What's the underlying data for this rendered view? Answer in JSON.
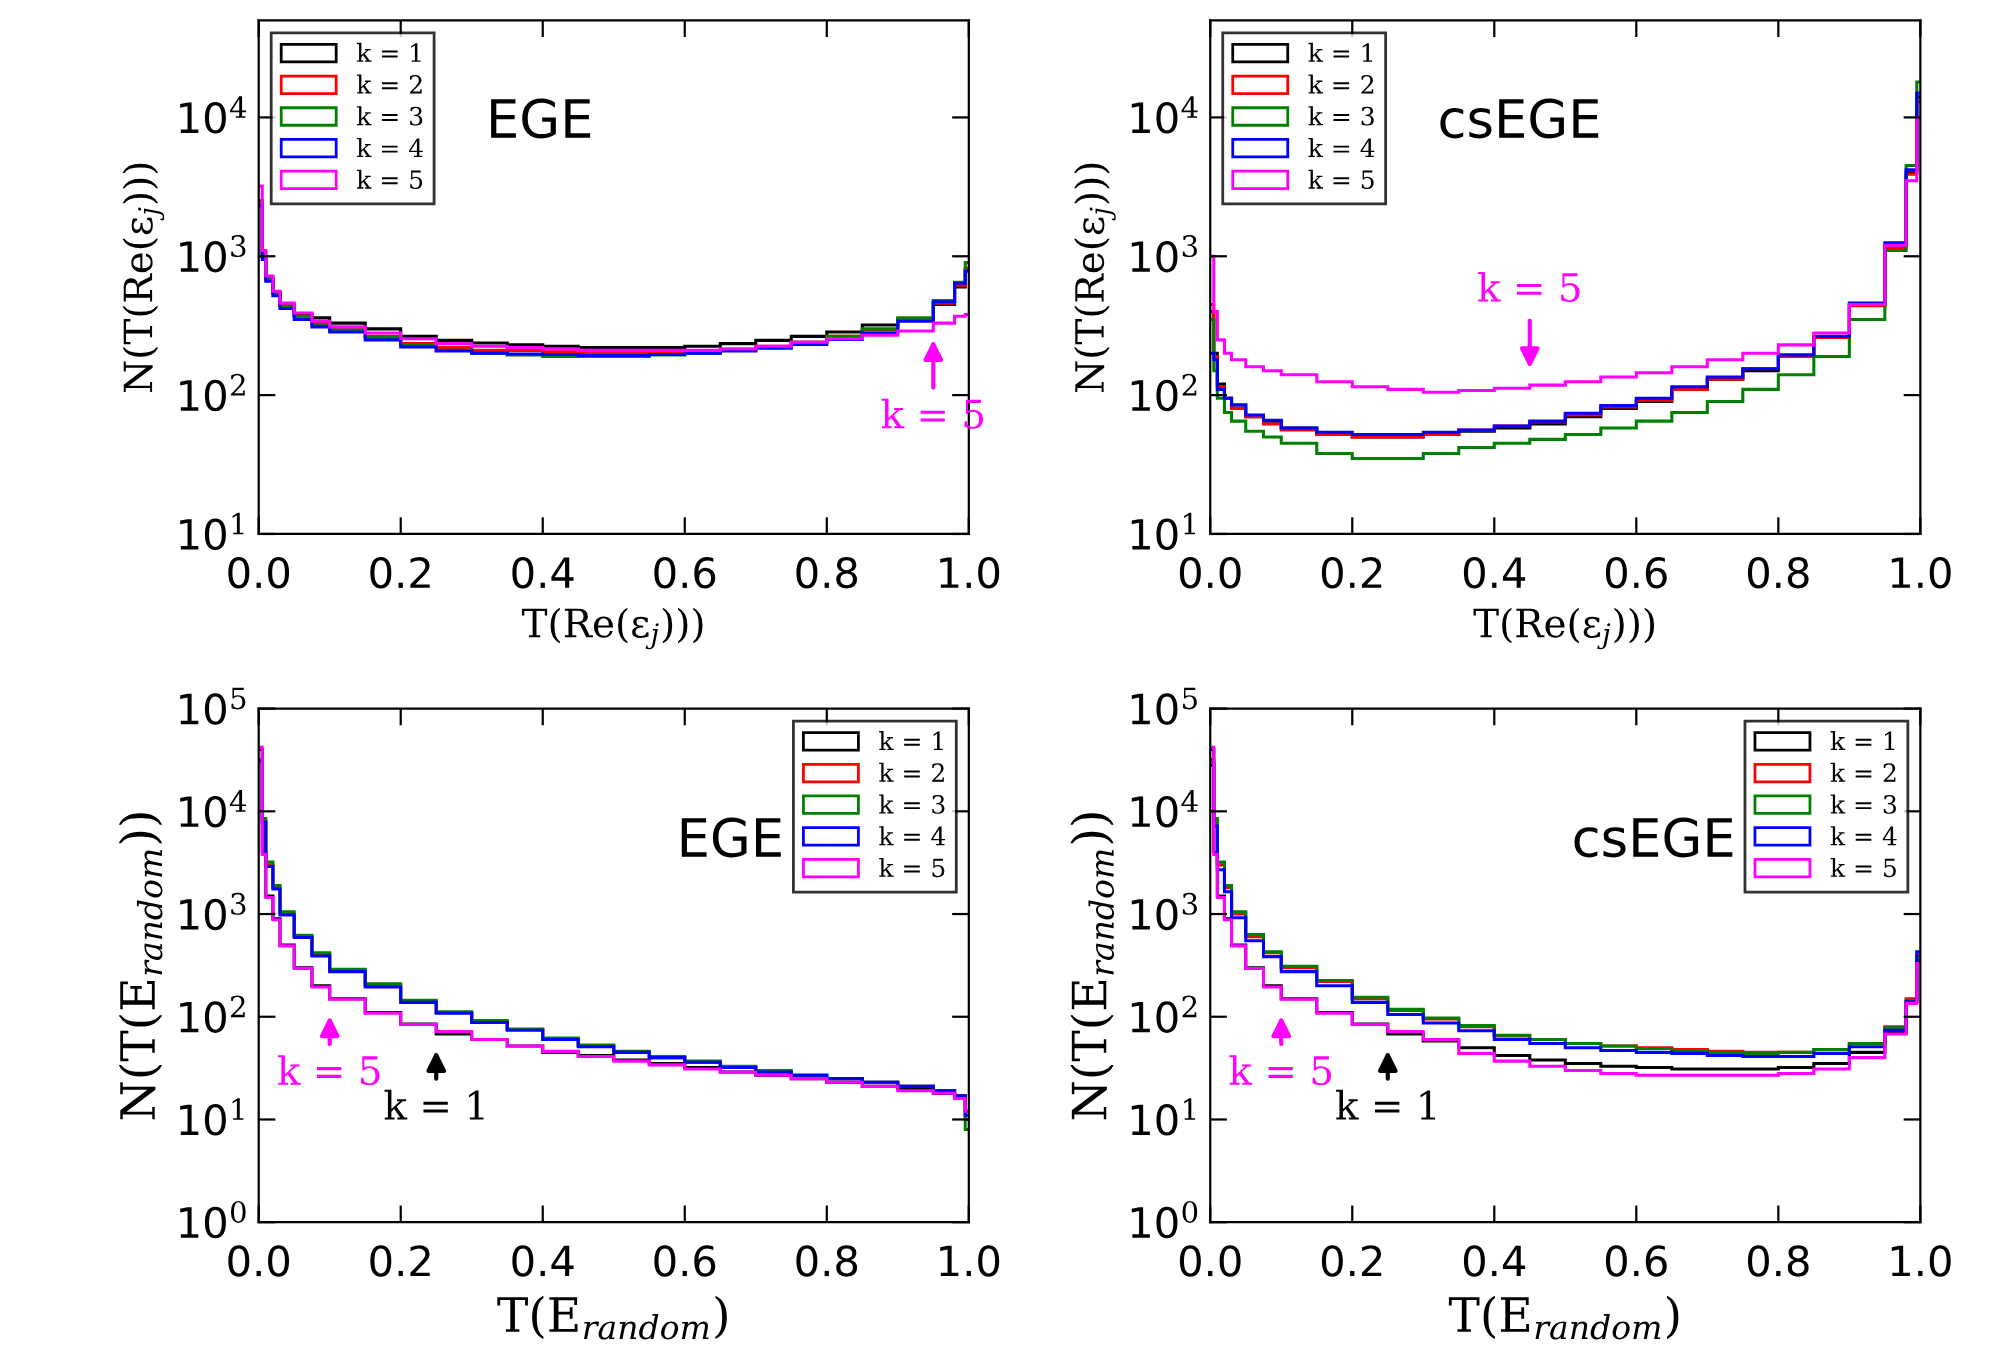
{
  "chart_data": [
    {
      "type": "histogram",
      "xlabel": "T(Re(ε$_{j}$)))",
      "ylabel": "N(T(Re(ε$_{j}$)))",
      "log": "y",
      "legend": "top left",
      "xlim": [
        0,
        1
      ],
      "ylim": [
        10,
        50000
      ],
      "xticks": [
        {
          "value": 0,
          "label": "0.0"
        },
        {
          "value": 0.2,
          "label": "0.2"
        },
        {
          "value": 0.4,
          "label": "0.4"
        },
        {
          "value": 0.6,
          "label": "0.6"
        },
        {
          "value": 0.8,
          "label": "0.8"
        },
        {
          "value": 1,
          "label": "1.0"
        }
      ],
      "yticks": [
        {
          "value": 10,
          "label": "10$^{1}$"
        },
        {
          "value": 100,
          "label": "10$^{2}$"
        },
        {
          "value": 1000,
          "label": "10$^{3}$"
        },
        {
          "value": 10000,
          "label": "10$^{4}$"
        }
      ],
      "bins": [
        0,
        0.005,
        0.01,
        0.02,
        0.03,
        0.05,
        0.075,
        0.1,
        0.15,
        0.2,
        0.25,
        0.3,
        0.35,
        0.4,
        0.45,
        0.5,
        0.55,
        0.6,
        0.65,
        0.7,
        0.75,
        0.8,
        0.85,
        0.9,
        0.95,
        0.98,
        0.995,
        1
      ],
      "series": [
        {
          "name": "k = 1",
          "color": "#000000",
          "values": [
            2500,
            1000,
            700,
            550,
            450,
            380,
            360,
            330,
            300,
            265,
            248,
            237,
            230,
            225,
            220,
            220,
            220,
            225,
            235,
            248,
            265,
            285,
            320,
            350,
            450,
            600,
            800
          ]
        },
        {
          "name": "k = 2",
          "color": "#ff0000",
          "values": [
            2400,
            1050,
            680,
            540,
            440,
            370,
            330,
            300,
            265,
            235,
            220,
            210,
            210,
            205,
            200,
            200,
            205,
            205,
            215,
            225,
            240,
            265,
            295,
            355,
            460,
            620,
            820
          ]
        },
        {
          "name": "k = 3",
          "color": "#008000",
          "values": [
            2500,
            1000,
            690,
            540,
            440,
            370,
            320,
            295,
            260,
            230,
            210,
            200,
            195,
            190,
            190,
            190,
            195,
            200,
            210,
            220,
            240,
            265,
            300,
            360,
            480,
            650,
            900
          ]
        },
        {
          "name": "k = 4",
          "color": "#0000ff",
          "values": [
            2300,
            950,
            660,
            520,
            420,
            350,
            310,
            285,
            250,
            222,
            208,
            200,
            198,
            196,
            193,
            193,
            196,
            200,
            208,
            218,
            232,
            252,
            280,
            340,
            470,
            640,
            780
          ]
        },
        {
          "name": "k = 5",
          "color": "#ff00ff",
          "values": [
            3200,
            1100,
            720,
            560,
            460,
            390,
            340,
            310,
            280,
            255,
            235,
            225,
            220,
            215,
            210,
            210,
            210,
            210,
            215,
            225,
            240,
            255,
            270,
            290,
            330,
            370,
            380
          ]
        }
      ],
      "annotations": [
        "EGE",
        {
          "text": "k = 5",
          "x": 0.95,
          "y": 330
        }
      ]
    },
    {
      "type": "histogram",
      "xlabel": "T(Re(ε$_{j}$)))",
      "ylabel": "N(T(Re(ε$_{j}$)))",
      "log": "y",
      "legend": "top left",
      "xlim": [
        0,
        1
      ],
      "ylim": [
        10,
        50000
      ],
      "xticks": [
        {
          "value": 0,
          "label": "0.0"
        },
        {
          "value": 0.2,
          "label": "0.2"
        },
        {
          "value": 0.4,
          "label": "0.4"
        },
        {
          "value": 0.6,
          "label": "0.6"
        },
        {
          "value": 0.8,
          "label": "0.8"
        },
        {
          "value": 1,
          "label": "1.0"
        }
      ],
      "yticks": [
        {
          "value": 10,
          "label": "10$^{1}$"
        },
        {
          "value": 100,
          "label": "10$^{2}$"
        },
        {
          "value": 1000,
          "label": "10$^{3}$"
        },
        {
          "value": 10000,
          "label": "10$^{4}$"
        }
      ],
      "bins": [
        0,
        0.005,
        0.01,
        0.02,
        0.03,
        0.05,
        0.075,
        0.1,
        0.15,
        0.2,
        0.25,
        0.3,
        0.35,
        0.4,
        0.45,
        0.5,
        0.55,
        0.6,
        0.65,
        0.7,
        0.75,
        0.8,
        0.85,
        0.9,
        0.95,
        0.98,
        0.995,
        1
      ],
      "series": [
        {
          "name": "k = 1",
          "color": "#000000",
          "values": [
            400,
            200,
            120,
            95,
            85,
            70,
            65,
            58,
            52,
            50,
            50,
            52,
            55,
            58,
            62,
            70,
            80,
            90,
            110,
            130,
            150,
            190,
            260,
            450,
            1200,
            4000,
            14000
          ]
        },
        {
          "name": "k = 2",
          "color": "#ff0000",
          "values": [
            450,
            190,
            115,
            95,
            80,
            70,
            62,
            56,
            52,
            50,
            50,
            52,
            56,
            60,
            64,
            72,
            82,
            92,
            110,
            130,
            155,
            190,
            260,
            440,
            1150,
            3900,
            13000
          ]
        },
        {
          "name": "k = 3",
          "color": "#008000",
          "values": [
            350,
            150,
            95,
            75,
            65,
            55,
            50,
            45,
            38,
            35,
            35,
            38,
            42,
            45,
            48,
            52,
            58,
            65,
            75,
            90,
            110,
            140,
            190,
            350,
            1100,
            4500,
            18000
          ]
        },
        {
          "name": "k = 4",
          "color": "#0000ff",
          "values": [
            200,
            180,
            110,
            95,
            85,
            72,
            66,
            58,
            54,
            52,
            52,
            54,
            56,
            60,
            65,
            74,
            84,
            95,
            115,
            135,
            155,
            195,
            265,
            460,
            1250,
            4200,
            15000
          ]
        },
        {
          "name": "k = 5",
          "color": "#ff00ff",
          "values": [
            1000,
            400,
            250,
            200,
            180,
            160,
            150,
            140,
            125,
            115,
            110,
            105,
            108,
            112,
            118,
            125,
            135,
            145,
            160,
            180,
            200,
            230,
            280,
            450,
            1200,
            3500,
            10000
          ]
        }
      ],
      "annotations": [
        "csEGE",
        {
          "text": "k = 5",
          "x": 0.45,
          "y": 118
        }
      ]
    },
    {
      "type": "histogram",
      "xlabel": "T(E$_{random}$)",
      "ylabel": "N(T(E$_{random}$))",
      "log": "y",
      "legend": "top right",
      "xlim": [
        0,
        1
      ],
      "ylim": [
        1,
        100000
      ],
      "xticks": [
        {
          "value": 0,
          "label": "0.0"
        },
        {
          "value": 0.2,
          "label": "0.2"
        },
        {
          "value": 0.4,
          "label": "0.4"
        },
        {
          "value": 0.6,
          "label": "0.6"
        },
        {
          "value": 0.8,
          "label": "0.8"
        },
        {
          "value": 1,
          "label": "1.0"
        }
      ],
      "yticks": [
        {
          "value": 1,
          "label": "10$^{0}$"
        },
        {
          "value": 10,
          "label": "10$^{1}$"
        },
        {
          "value": 100,
          "label": "10$^{2}$"
        },
        {
          "value": 1000,
          "label": "10$^{3}$"
        },
        {
          "value": 10000,
          "label": "10$^{4}$"
        },
        {
          "value": 100000,
          "label": "10$^{5}$"
        }
      ],
      "bins": [
        0,
        0.005,
        0.01,
        0.02,
        0.03,
        0.05,
        0.075,
        0.1,
        0.15,
        0.2,
        0.25,
        0.3,
        0.35,
        0.4,
        0.45,
        0.5,
        0.55,
        0.6,
        0.65,
        0.7,
        0.75,
        0.8,
        0.85,
        0.9,
        0.95,
        0.98,
        0.995,
        1
      ],
      "series": [
        {
          "name": "k = 1",
          "color": "#000000",
          "values": [
            40000,
            4000,
            1500,
            900,
            500,
            300,
            200,
            150,
            110,
            85,
            68,
            60,
            52,
            45,
            42,
            38,
            35,
            32,
            29,
            27,
            25,
            23,
            21,
            20,
            18,
            17,
            12
          ]
        },
        {
          "name": "k = 2",
          "color": "#ff0000",
          "values": [
            30000,
            8000,
            3000,
            1800,
            1000,
            600,
            400,
            280,
            200,
            140,
            110,
            90,
            75,
            60,
            52,
            45,
            40,
            36,
            32,
            29,
            27,
            25,
            23,
            21,
            19,
            17,
            10
          ]
        },
        {
          "name": "k = 3",
          "color": "#008000",
          "values": [
            32000,
            8500,
            3200,
            1900,
            1050,
            620,
            420,
            290,
            210,
            145,
            112,
            92,
            76,
            62,
            53,
            46,
            41,
            37,
            33,
            30,
            27,
            25,
            23,
            21,
            19,
            16,
            8
          ]
        },
        {
          "name": "k = 4",
          "color": "#0000ff",
          "values": [
            31000,
            7800,
            2900,
            1750,
            980,
            590,
            390,
            275,
            195,
            138,
            108,
            88,
            74,
            60,
            51,
            45,
            40,
            36,
            32,
            29,
            27,
            25,
            23,
            21,
            19,
            17,
            11
          ]
        },
        {
          "name": "k = 5",
          "color": "#ff00ff",
          "values": [
            42000,
            3800,
            1450,
            880,
            490,
            295,
            195,
            148,
            108,
            84,
            72,
            60,
            52,
            46,
            41,
            37,
            34,
            31,
            29,
            27,
            25,
            23,
            21,
            19,
            18,
            16,
            12
          ]
        }
      ],
      "annotations": [
        "EGE",
        {
          "text": "k = 5",
          "x": 0.1,
          "y": 148
        },
        {
          "text": "k = 1",
          "x": 0.25,
          "y": 68
        }
      ]
    },
    {
      "type": "histogram",
      "xlabel": "T(E$_{random}$)",
      "ylabel": "N(T(E$_{random}$))",
      "log": "y",
      "legend": "top right",
      "xlim": [
        0,
        1
      ],
      "ylim": [
        1,
        100000
      ],
      "xticks": [
        {
          "value": 0,
          "label": "0.0"
        },
        {
          "value": 0.2,
          "label": "0.2"
        },
        {
          "value": 0.4,
          "label": "0.4"
        },
        {
          "value": 0.6,
          "label": "0.6"
        },
        {
          "value": 0.8,
          "label": "0.8"
        },
        {
          "value": 1,
          "label": "1.0"
        }
      ],
      "yticks": [
        {
          "value": 1,
          "label": "10$^{0}$"
        },
        {
          "value": 10,
          "label": "10$^{1}$"
        },
        {
          "value": 100,
          "label": "10$^{2}$"
        },
        {
          "value": 1000,
          "label": "10$^{3}$"
        },
        {
          "value": 10000,
          "label": "10$^{4}$"
        },
        {
          "value": 100000,
          "label": "10$^{5}$"
        }
      ],
      "bins": [
        0,
        0.005,
        0.01,
        0.02,
        0.03,
        0.05,
        0.075,
        0.1,
        0.15,
        0.2,
        0.25,
        0.3,
        0.35,
        0.4,
        0.45,
        0.5,
        0.55,
        0.6,
        0.65,
        0.7,
        0.75,
        0.8,
        0.85,
        0.9,
        0.95,
        0.98,
        0.995,
        1
      ],
      "series": [
        {
          "name": "k = 1",
          "color": "#000000",
          "values": [
            40000,
            4000,
            1500,
            900,
            500,
            300,
            200,
            150,
            110,
            85,
            68,
            58,
            50,
            42,
            38,
            35,
            33,
            32,
            31,
            31,
            31,
            32,
            35,
            45,
            70,
            140,
            350
          ]
        },
        {
          "name": "k = 2",
          "color": "#ff0000",
          "values": [
            30000,
            8000,
            3000,
            1800,
            1000,
            600,
            420,
            300,
            220,
            150,
            115,
            95,
            80,
            65,
            60,
            55,
            52,
            50,
            48,
            46,
            45,
            45,
            48,
            55,
            80,
            150,
            400
          ]
        },
        {
          "name": "k = 3",
          "color": "#008000",
          "values": [
            32000,
            8500,
            3200,
            1900,
            1050,
            630,
            430,
            310,
            225,
            155,
            118,
            97,
            82,
            66,
            60,
            55,
            52,
            49,
            47,
            45,
            44,
            45,
            48,
            55,
            78,
            145,
            380
          ]
        },
        {
          "name": "k = 4",
          "color": "#0000ff",
          "values": [
            28000,
            7200,
            2700,
            1650,
            920,
            550,
            385,
            275,
            200,
            138,
            105,
            87,
            73,
            60,
            55,
            50,
            47,
            45,
            44,
            42,
            41,
            41,
            44,
            51,
            74,
            140,
            430
          ]
        },
        {
          "name": "k = 5",
          "color": "#ff00ff",
          "values": [
            42000,
            3800,
            1450,
            880,
            490,
            295,
            195,
            148,
            108,
            84,
            72,
            60,
            44,
            37,
            33,
            30,
            28,
            27,
            27,
            27,
            27,
            28,
            31,
            40,
            68,
            135,
            330
          ]
        }
      ],
      "annotations": [
        "csEGE",
        {
          "text": "k = 5",
          "x": 0.1,
          "y": 148
        },
        {
          "text": "k = 1",
          "x": 0.25,
          "y": 68
        }
      ]
    }
  ]
}
